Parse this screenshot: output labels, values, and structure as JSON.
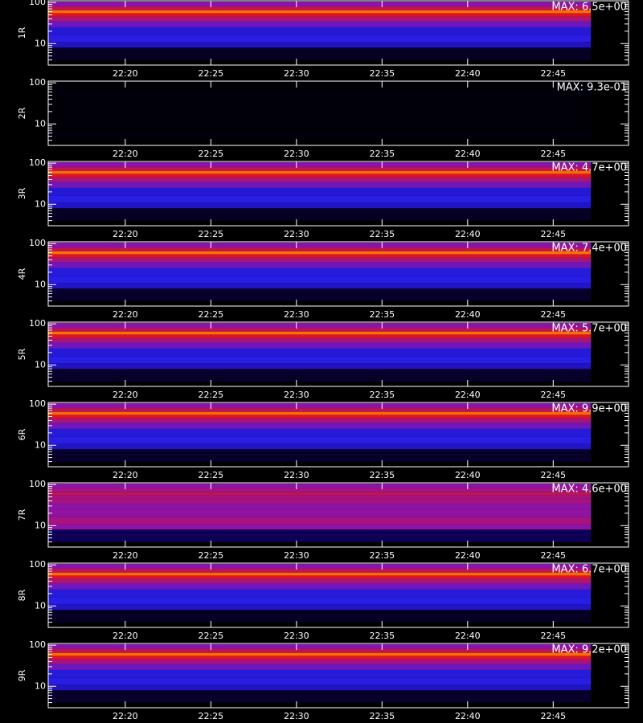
{
  "chart_data": [
    {
      "type": "spectrogram",
      "ylabel": "1R",
      "max": {
        "value": 6.5,
        "label": "MAX: 6.5e+00"
      },
      "log_y": true,
      "ylim": [
        3,
        110
      ],
      "yticks": [
        10,
        100
      ],
      "yminorticks": [
        4,
        5,
        6,
        7,
        8,
        9,
        20,
        30,
        40,
        50,
        60,
        70,
        80,
        90
      ],
      "xlim": [
        1335.5,
        1369.4
      ],
      "xticks": [
        {
          "value": 1340,
          "label": "22:20"
        },
        {
          "value": 1345,
          "label": "22:25"
        },
        {
          "value": 1350,
          "label": "22:30"
        },
        {
          "value": 1355,
          "label": "22:35"
        },
        {
          "value": 1360,
          "label": "22:40"
        },
        {
          "value": 1365,
          "label": "22:45"
        }
      ],
      "time_range": [
        1335.5,
        1367.2
      ],
      "ybins": [
        4,
        8,
        11,
        16,
        25,
        35,
        45,
        55,
        65,
        80,
        105
      ],
      "values": [
        0.3,
        1.6,
        2.0,
        1.8,
        2.6,
        3.3,
        3.9,
        4.9,
        3.6,
        2.9
      ]
    },
    {
      "type": "spectrogram",
      "ylabel": "2R",
      "max": {
        "value": 0.93,
        "label": "MAX: 9.3e-01"
      },
      "log_y": true,
      "ylim": [
        3,
        110
      ],
      "yticks": [
        10,
        100
      ],
      "yminorticks": [
        4,
        5,
        6,
        7,
        8,
        9,
        20,
        30,
        40,
        50,
        60,
        70,
        80,
        90
      ],
      "xlim": [
        1335.5,
        1369.4
      ],
      "xticks": [
        {
          "value": 1340,
          "label": "22:20"
        },
        {
          "value": 1345,
          "label": "22:25"
        },
        {
          "value": 1350,
          "label": "22:30"
        },
        {
          "value": 1355,
          "label": "22:35"
        },
        {
          "value": 1360,
          "label": "22:40"
        },
        {
          "value": 1365,
          "label": "22:45"
        }
      ],
      "time_range": [
        1335.5,
        1367.2
      ],
      "ybins": [
        4,
        8,
        11,
        16,
        25,
        35,
        45,
        55,
        65,
        80,
        105
      ],
      "values": [
        0.01,
        0.01,
        0.01,
        0.01,
        0.01,
        0.01,
        0.01,
        0.01,
        0.01,
        0.01
      ]
    },
    {
      "type": "spectrogram",
      "ylabel": "3R",
      "max": {
        "value": 4.7,
        "label": "MAX: 4.7e+00"
      },
      "log_y": true,
      "ylim": [
        3,
        110
      ],
      "yticks": [
        10,
        100
      ],
      "yminorticks": [
        4,
        5,
        6,
        7,
        8,
        9,
        20,
        30,
        40,
        50,
        60,
        70,
        80,
        90
      ],
      "xlim": [
        1335.5,
        1369.4
      ],
      "xticks": [
        {
          "value": 1340,
          "label": "22:20"
        },
        {
          "value": 1345,
          "label": "22:25"
        },
        {
          "value": 1350,
          "label": "22:30"
        },
        {
          "value": 1355,
          "label": "22:35"
        },
        {
          "value": 1360,
          "label": "22:40"
        },
        {
          "value": 1365,
          "label": "22:45"
        }
      ],
      "time_range": [
        1335.5,
        1367.2
      ],
      "ybins": [
        4,
        8,
        11,
        16,
        25,
        35,
        45,
        55,
        65,
        80,
        105
      ],
      "values": [
        0.2,
        1.2,
        1.4,
        1.3,
        1.9,
        2.4,
        2.8,
        3.5,
        2.6,
        2.1
      ]
    },
    {
      "type": "spectrogram",
      "ylabel": "4R",
      "max": {
        "value": 7.4,
        "label": "MAX: 7.4e+00"
      },
      "log_y": true,
      "ylim": [
        3,
        110
      ],
      "yticks": [
        10,
        100
      ],
      "yminorticks": [
        4,
        5,
        6,
        7,
        8,
        9,
        20,
        30,
        40,
        50,
        60,
        70,
        80,
        90
      ],
      "xlim": [
        1335.5,
        1369.4
      ],
      "xticks": [
        {
          "value": 1340,
          "label": "22:20"
        },
        {
          "value": 1345,
          "label": "22:25"
        },
        {
          "value": 1350,
          "label": "22:30"
        },
        {
          "value": 1355,
          "label": "22:35"
        },
        {
          "value": 1360,
          "label": "22:40"
        },
        {
          "value": 1365,
          "label": "22:45"
        }
      ],
      "time_range": [
        1335.5,
        1367.2
      ],
      "ybins": [
        4,
        8,
        11,
        16,
        25,
        35,
        45,
        55,
        65,
        80,
        105
      ],
      "values": [
        0.4,
        1.9,
        2.2,
        2.1,
        3.0,
        3.7,
        4.4,
        5.6,
        4.1,
        3.3
      ]
    },
    {
      "type": "spectrogram",
      "ylabel": "5R",
      "max": {
        "value": 5.7,
        "label": "MAX: 5.7e+00"
      },
      "log_y": true,
      "ylim": [
        3,
        110
      ],
      "yticks": [
        10,
        100
      ],
      "yminorticks": [
        4,
        5,
        6,
        7,
        8,
        9,
        20,
        30,
        40,
        50,
        60,
        70,
        80,
        90
      ],
      "xlim": [
        1335.5,
        1369.4
      ],
      "xticks": [
        {
          "value": 1340,
          "label": "22:20"
        },
        {
          "value": 1345,
          "label": "22:25"
        },
        {
          "value": 1350,
          "label": "22:30"
        },
        {
          "value": 1355,
          "label": "22:35"
        },
        {
          "value": 1360,
          "label": "22:40"
        },
        {
          "value": 1365,
          "label": "22:45"
        }
      ],
      "time_range": [
        1335.5,
        1367.2
      ],
      "ybins": [
        4,
        8,
        11,
        16,
        25,
        35,
        45,
        55,
        65,
        80,
        105
      ],
      "values": [
        0.3,
        1.4,
        1.7,
        1.6,
        2.3,
        2.9,
        3.4,
        4.3,
        3.1,
        2.6
      ]
    },
    {
      "type": "spectrogram",
      "ylabel": "6R",
      "max": {
        "value": 9.9,
        "label": "MAX: 9.9e+00"
      },
      "log_y": true,
      "ylim": [
        3,
        110
      ],
      "yticks": [
        10,
        100
      ],
      "yminorticks": [
        4,
        5,
        6,
        7,
        8,
        9,
        20,
        30,
        40,
        50,
        60,
        70,
        80,
        90
      ],
      "xlim": [
        1335.5,
        1369.4
      ],
      "xticks": [
        {
          "value": 1340,
          "label": "22:20"
        },
        {
          "value": 1345,
          "label": "22:25"
        },
        {
          "value": 1350,
          "label": "22:30"
        },
        {
          "value": 1355,
          "label": "22:35"
        },
        {
          "value": 1360,
          "label": "22:40"
        },
        {
          "value": 1365,
          "label": "22:45"
        }
      ],
      "time_range": [
        1335.5,
        1367.2
      ],
      "ybins": [
        4,
        8,
        11,
        16,
        25,
        35,
        45,
        55,
        65,
        80,
        105
      ],
      "values": [
        0.5,
        2.5,
        3.0,
        2.8,
        4.0,
        5.0,
        5.9,
        7.4,
        5.4,
        4.5
      ]
    },
    {
      "type": "spectrogram",
      "ylabel": "7R",
      "max": {
        "value": 4.6,
        "label": "MAX: 4.6e+00"
      },
      "log_y": true,
      "ylim": [
        3,
        110
      ],
      "yticks": [
        10,
        100
      ],
      "yminorticks": [
        4,
        5,
        6,
        7,
        8,
        9,
        20,
        30,
        40,
        50,
        60,
        70,
        80,
        90
      ],
      "xlim": [
        1335.5,
        1369.4
      ],
      "xticks": [
        {
          "value": 1340,
          "label": "22:20"
        },
        {
          "value": 1345,
          "label": "22:25"
        },
        {
          "value": 1350,
          "label": "22:30"
        },
        {
          "value": 1355,
          "label": "22:35"
        },
        {
          "value": 1360,
          "label": "22:40"
        },
        {
          "value": 1365,
          "label": "22:45"
        }
      ],
      "time_range": [
        1335.5,
        1367.2
      ],
      "ybins": [
        4,
        8,
        11,
        16,
        25,
        35,
        45,
        55,
        65,
        80,
        105
      ],
      "values": [
        0.5,
        2.1,
        2.3,
        2.1,
        2.1,
        2.3,
        2.3,
        2.5,
        2.3,
        2.1
      ]
    },
    {
      "type": "spectrogram",
      "ylabel": "8R",
      "max": {
        "value": 6.7,
        "label": "MAX: 6.7e+00"
      },
      "log_y": true,
      "ylim": [
        3,
        110
      ],
      "yticks": [
        10,
        100
      ],
      "yminorticks": [
        4,
        5,
        6,
        7,
        8,
        9,
        20,
        30,
        40,
        50,
        60,
        70,
        80,
        90
      ],
      "xlim": [
        1335.5,
        1369.4
      ],
      "xticks": [
        {
          "value": 1340,
          "label": "22:20"
        },
        {
          "value": 1345,
          "label": "22:25"
        },
        {
          "value": 1350,
          "label": "22:30"
        },
        {
          "value": 1355,
          "label": "22:35"
        },
        {
          "value": 1360,
          "label": "22:40"
        },
        {
          "value": 1365,
          "label": "22:45"
        }
      ],
      "time_range": [
        1335.5,
        1367.2
      ],
      "ybins": [
        4,
        8,
        11,
        16,
        25,
        35,
        45,
        55,
        65,
        80,
        105
      ],
      "values": [
        0.3,
        1.7,
        2.0,
        1.9,
        2.7,
        3.4,
        4.0,
        5.0,
        3.7,
        3.0
      ]
    },
    {
      "type": "spectrogram",
      "ylabel": "9R",
      "max": {
        "value": 9.2,
        "label": "MAX: 9.2e+00"
      },
      "log_y": true,
      "ylim": [
        3,
        110
      ],
      "yticks": [
        10,
        100
      ],
      "yminorticks": [
        4,
        5,
        6,
        7,
        8,
        9,
        20,
        30,
        40,
        50,
        60,
        70,
        80,
        90
      ],
      "xlim": [
        1335.5,
        1369.4
      ],
      "xticks": [
        {
          "value": 1340,
          "label": "22:20"
        },
        {
          "value": 1345,
          "label": "22:25"
        },
        {
          "value": 1350,
          "label": "22:30"
        },
        {
          "value": 1355,
          "label": "22:35"
        },
        {
          "value": 1360,
          "label": "22:40"
        },
        {
          "value": 1365,
          "label": "22:45"
        }
      ],
      "time_range": [
        1335.5,
        1367.2
      ],
      "ybins": [
        4,
        8,
        11,
        16,
        25,
        35,
        45,
        55,
        65,
        80,
        105
      ],
      "values": [
        0.5,
        2.3,
        2.8,
        2.6,
        3.7,
        4.6,
        5.5,
        6.9,
        5.1,
        4.1
      ]
    }
  ]
}
